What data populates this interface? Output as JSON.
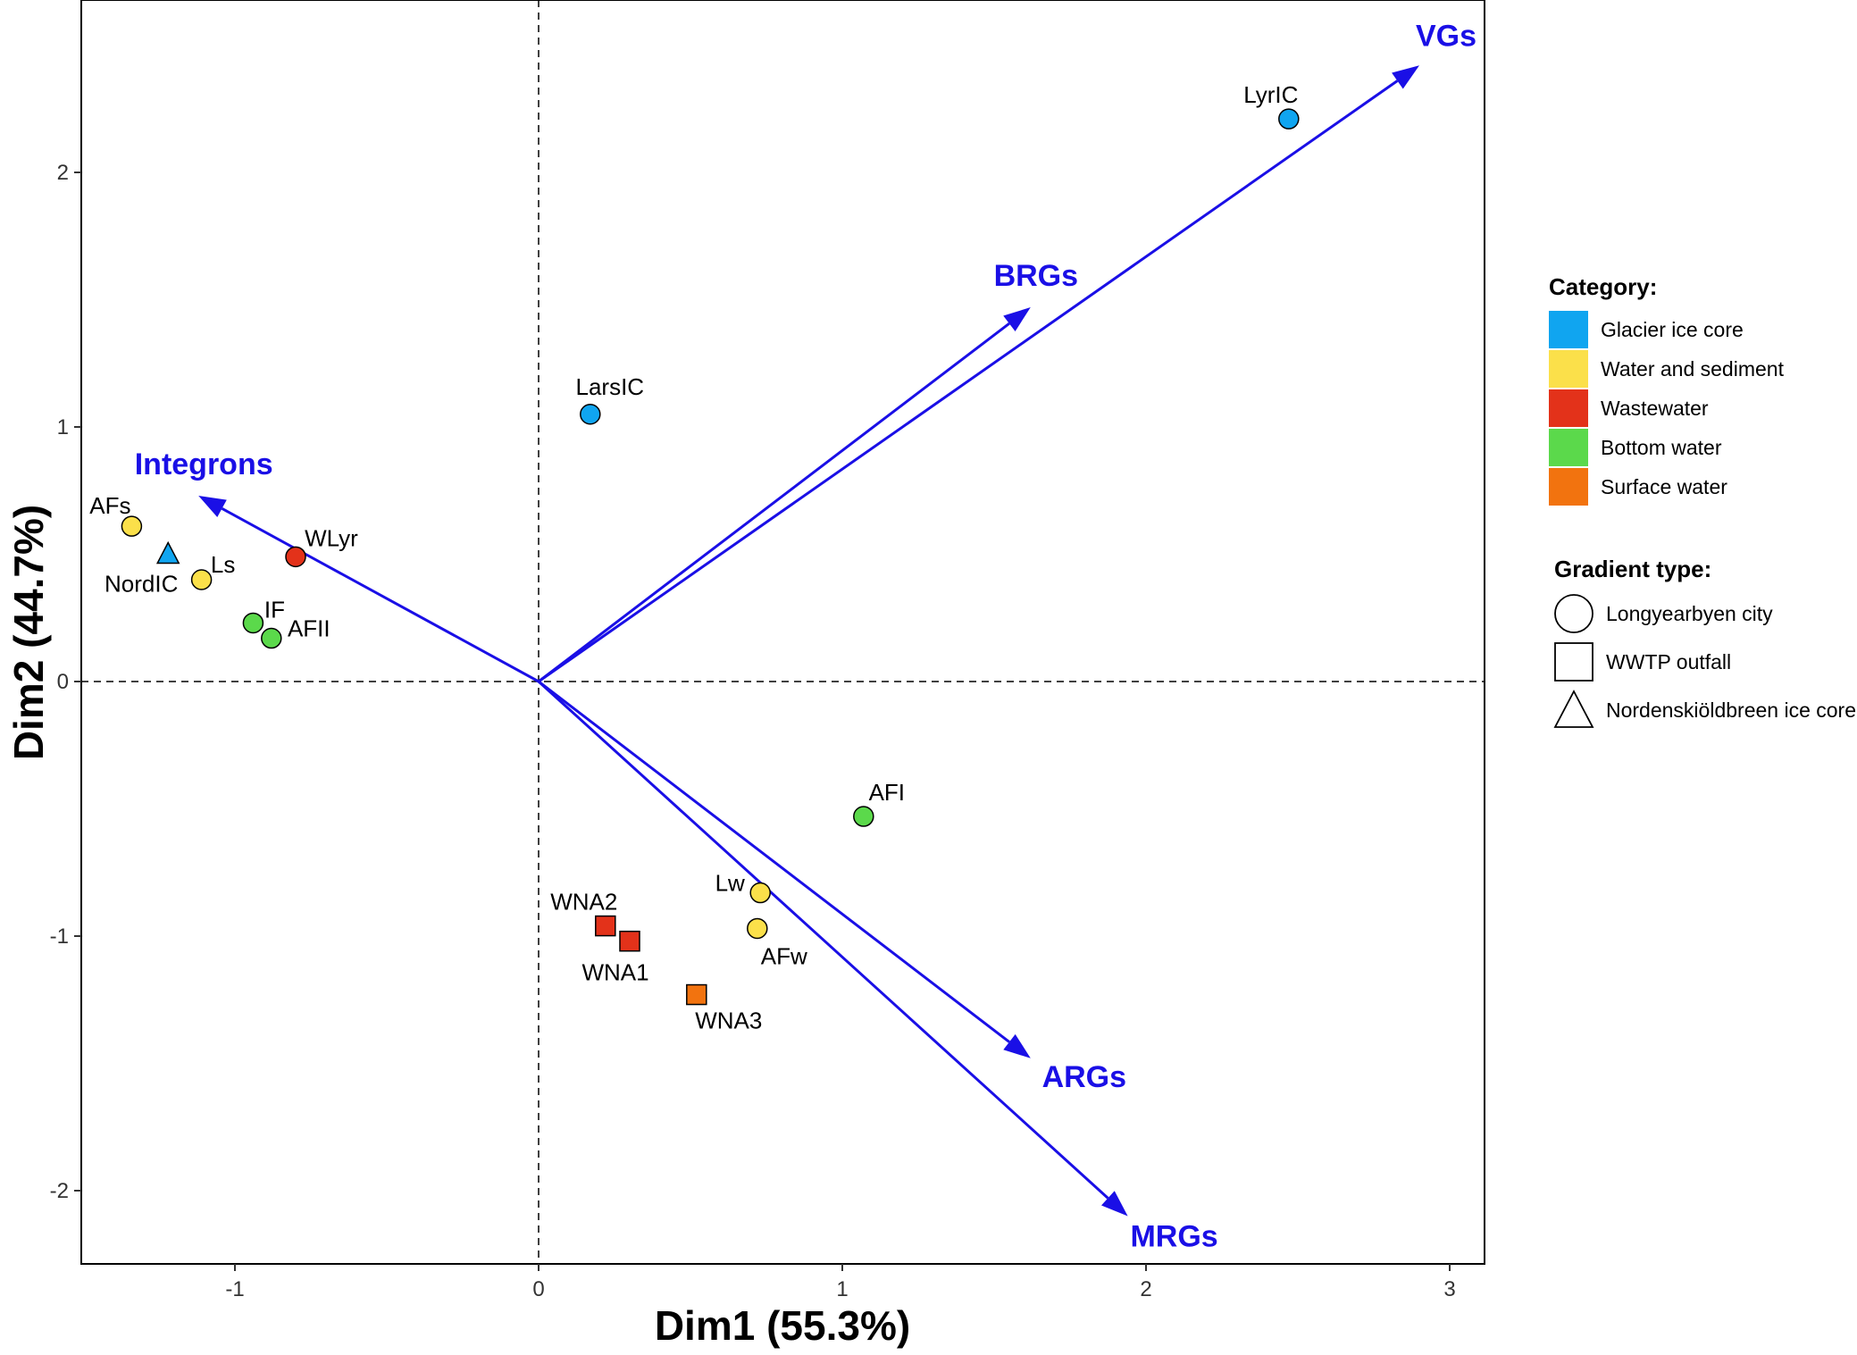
{
  "chart_data": {
    "type": "scatter",
    "xlabel": "Dim1 (55.3%)",
    "ylabel": "Dim2 (44.7%)",
    "xlim": [
      -1.5,
      3.1
    ],
    "ylim": [
      -2.3,
      2.7
    ],
    "xticks": [
      -1,
      0,
      1,
      2,
      3
    ],
    "yticks": [
      -2,
      -1,
      0,
      1,
      2
    ],
    "tick_labels": {
      "x": [
        "-1",
        "0",
        "1",
        "2",
        "3"
      ],
      "y": [
        "-2",
        "-1",
        "0",
        "1",
        "2"
      ]
    },
    "grid": false,
    "reference_lines": "dashed lines at x=0 and y=0",
    "points": [
      {
        "label": "LyrIC",
        "x": 2.47,
        "y": 2.21,
        "category": "Glacier ice core",
        "gradient": "Longyearbyen city"
      },
      {
        "label": "LarsIC",
        "x": 0.17,
        "y": 1.05,
        "category": "Glacier ice core",
        "gradient": "Longyearbyen city"
      },
      {
        "label": "AFs",
        "x": -1.34,
        "y": 0.61,
        "category": "Water and sediment",
        "gradient": "Longyearbyen city"
      },
      {
        "label": "NordIC",
        "x": -1.22,
        "y": 0.5,
        "category": "Glacier ice core",
        "gradient": "Nordenskiöldbreen ice core"
      },
      {
        "label": "Ls",
        "x": -1.11,
        "y": 0.4,
        "category": "Water and sediment",
        "gradient": "Longyearbyen city"
      },
      {
        "label": "WLyr",
        "x": -0.8,
        "y": 0.49,
        "category": "Wastewater",
        "gradient": "Longyearbyen city"
      },
      {
        "label": "IF",
        "x": -0.94,
        "y": 0.23,
        "category": "Bottom water",
        "gradient": "Longyearbyen city"
      },
      {
        "label": "AFII",
        "x": -0.88,
        "y": 0.17,
        "category": "Bottom water",
        "gradient": "Longyearbyen city"
      },
      {
        "label": "AFI",
        "x": 1.07,
        "y": -0.53,
        "category": "Bottom water",
        "gradient": "Longyearbyen city"
      },
      {
        "label": "Lw",
        "x": 0.73,
        "y": -0.83,
        "category": "Water and sediment",
        "gradient": "Longyearbyen city"
      },
      {
        "label": "AFw",
        "x": 0.72,
        "y": -0.97,
        "category": "Water and sediment",
        "gradient": "Longyearbyen city"
      },
      {
        "label": "WNA2",
        "x": 0.22,
        "y": -0.96,
        "category": "Wastewater",
        "gradient": "WWTP outfall"
      },
      {
        "label": "WNA1",
        "x": 0.3,
        "y": -1.02,
        "category": "Wastewater",
        "gradient": "WWTP outfall"
      },
      {
        "label": "WNA3",
        "x": 0.52,
        "y": -1.23,
        "category": "Surface water",
        "gradient": "WWTP outfall"
      }
    ],
    "vectors": [
      {
        "label": "VGs",
        "x": 2.9,
        "y": 2.42
      },
      {
        "label": "BRGs",
        "x": 1.62,
        "y": 1.47
      },
      {
        "label": "Integrons",
        "x": -1.12,
        "y": 0.73
      },
      {
        "label": "ARGs",
        "x": 1.62,
        "y": -1.48
      },
      {
        "label": "MRGs",
        "x": 1.94,
        "y": -2.1
      }
    ],
    "vector_color": "#1a0fe6",
    "legend": {
      "placement": "right",
      "category_title": "Category:",
      "categories": [
        {
          "name": "Glacier ice core",
          "color": "#10a5f0"
        },
        {
          "name": "Water and sediment",
          "color": "#fbe04a"
        },
        {
          "name": "Wastewater",
          "color": "#e3321a"
        },
        {
          "name": "Bottom water",
          "color": "#5bd94b"
        },
        {
          "name": "Surface water",
          "color": "#f2730f"
        }
      ],
      "shape_title": "Gradient type:",
      "shapes": [
        {
          "name": "Longyearbyen city",
          "shape": "circle"
        },
        {
          "name": "WWTP outfall",
          "shape": "square"
        },
        {
          "name": "Nordenskiöldbreen ice core",
          "shape": "triangle"
        }
      ]
    }
  }
}
